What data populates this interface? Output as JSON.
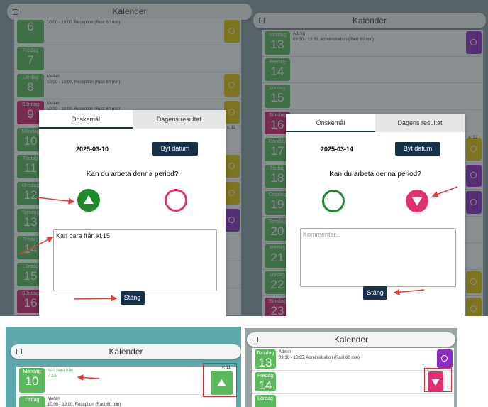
{
  "panels": [
    {
      "title": "Kalender",
      "week": "v. 11",
      "rows": [
        {
          "date": "6",
          "lines": [
            "10:00 - 19:00, Reception (Rast 60 min)"
          ],
          "color": "#5cb85c",
          "badge": "#e6c300"
        },
        {
          "name": "Fredag",
          "date": "7",
          "color": "#5cb85c"
        },
        {
          "name": "Lördag",
          "date": "8",
          "lines": [
            "Mellan",
            "10:00 - 19:00, Reception (Rast 60 min)"
          ],
          "color": "#5cb85c",
          "badge": "#e6c300"
        },
        {
          "name": "Söndag",
          "date": "9",
          "lines": [
            "Mellan",
            "10:00 - 19:00, Reception (Rast 60 min)"
          ],
          "color": "#d6246e",
          "badge": "#e6c300"
        },
        {
          "name": "Måndag",
          "date": "10",
          "color": "#5cb85c"
        },
        {
          "name": "Tisdag",
          "date": "11",
          "color": "#5cb85c",
          "badge": "#e6c300"
        },
        {
          "name": "Onsdag",
          "date": "12",
          "color": "#5cb85c",
          "badge": "#e6c300"
        },
        {
          "name": "Torsdag",
          "date": "13",
          "color": "#5cb85c",
          "badge": "#8e2cc0"
        },
        {
          "name": "Fredag",
          "date": "14",
          "color": "#5cb85c"
        },
        {
          "name": "Lördag",
          "date": "15",
          "color": "#5cb85c"
        },
        {
          "name": "Söndag",
          "date": "16",
          "color": "#d6246e"
        }
      ],
      "modal": {
        "tabs": [
          "Önskemål",
          "Dagens resultat"
        ],
        "date": "2025-03-10",
        "button": "Byt datum",
        "question": "Kan du arbeta denna period?",
        "comment": "Kan bara från kl.15",
        "close": "Stäng"
      }
    },
    {
      "title": "Kalender",
      "week": "v. 12",
      "rows": [
        {
          "name": "Torsdag",
          "date": "13",
          "lines": [
            "Admin",
            "09:30 - 13:35, Administration (Rast 60 min)"
          ],
          "color": "#5cb85c",
          "badge": "#8e2cc0"
        },
        {
          "name": "Fredag",
          "date": "14",
          "color": "#5cb85c"
        },
        {
          "name": "Lördag",
          "date": "15",
          "color": "#5cb85c"
        },
        {
          "name": "Söndag",
          "date": "16",
          "color": "#d6246e"
        },
        {
          "name": "Måndag",
          "date": "17",
          "color": "#5cb85c",
          "badge": "#e6c300"
        },
        {
          "name": "Tisdag",
          "date": "18",
          "color": "#5cb85c",
          "badge": "#8e2cc0"
        },
        {
          "name": "Onsdag",
          "date": "19",
          "color": "#5cb85c",
          "badge": "#8e2cc0"
        },
        {
          "name": "Torsdag",
          "date": "20",
          "color": "#5cb85c"
        },
        {
          "name": "Fredag",
          "date": "21",
          "color": "#5cb85c"
        },
        {
          "name": "Lördag",
          "date": "22",
          "color": "#5cb85c",
          "badge": "#e6c300"
        },
        {
          "name": "Söndag",
          "date": "23",
          "color": "#d6246e",
          "badge": "#e6c300"
        }
      ],
      "modal": {
        "tabs": [
          "Önskemål",
          "Dagens resultat"
        ],
        "date": "2025-03-14",
        "button": "Byt datum",
        "question": "Kan du arbeta denna period?",
        "placeholder": "Kommentar...",
        "close": "Stäng"
      }
    },
    {
      "title": "Kalender",
      "week": "v. 11",
      "rows": [
        {
          "name": "Måndag",
          "date": "10",
          "lines": [
            "Kan bara från",
            "kl.15"
          ],
          "color": "#5cb85c"
        },
        {
          "name": "Tisdag",
          "lines": [
            "Mellan",
            "10:00 - 19:00, Reception (Rast 60 min)"
          ],
          "color": "#5cb85c"
        }
      ]
    },
    {
      "title": "Kalender",
      "rows": [
        {
          "name": "Torsdag",
          "date": "13",
          "lines": [
            "Admin",
            "09:30 - 13:35, Administration (Rast 60 min)"
          ],
          "color": "#5cb85c",
          "badge": "#8e2cc0"
        },
        {
          "name": "Fredag",
          "date": "14",
          "color": "#5cb85c"
        },
        {
          "name": "Lördag",
          "color": "#5cb85c"
        }
      ]
    }
  ]
}
